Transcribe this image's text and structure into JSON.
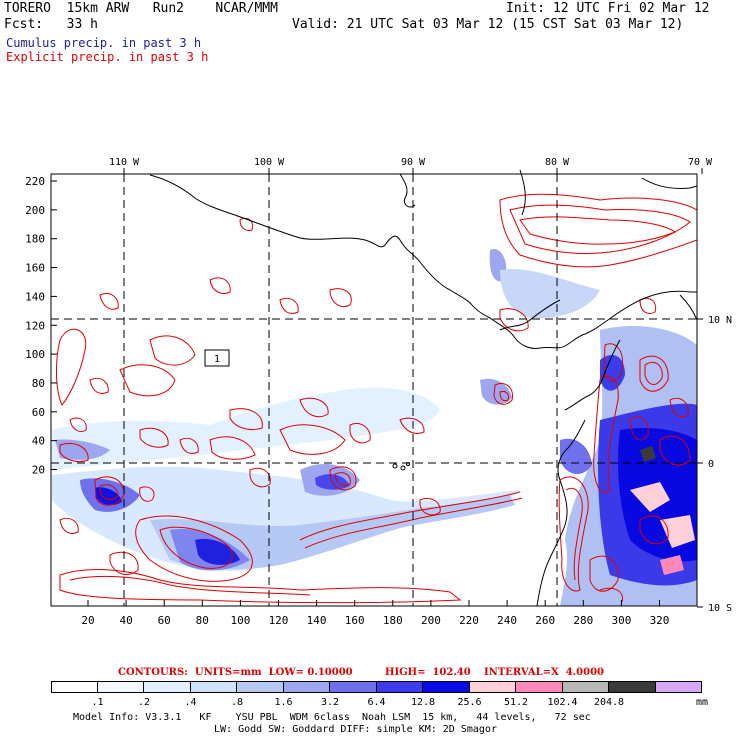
{
  "header": {
    "model_title": "TORERO  15km ARW   Run2    NCAR/MMM",
    "init": "Init: 12 UTC Fri 02 Mar 12",
    "fcst": "Fcst:   33 h",
    "valid": "Valid: 21 UTC Sat 03 Mar 12 (15 CST Sat 03 Mar 12)",
    "legend_cumulus": "Cumulus precip. in past 3 h",
    "legend_explicit": "Explicit precip. in past 3 h"
  },
  "map": {
    "top_longitudes": [
      "110 W",
      "100 W",
      "90 W",
      "80 W",
      "70 W"
    ],
    "right_latitudes": [
      "10 N",
      "0",
      "10 S"
    ],
    "y_ticks": [
      "220",
      "200",
      "180",
      "160",
      "140",
      "120",
      "100",
      "80",
      "60",
      "40",
      "20"
    ],
    "x_ticks": [
      "20",
      "40",
      "60",
      "80",
      "100",
      "120",
      "140",
      "160",
      "180",
      "200",
      "220",
      "240",
      "260",
      "280",
      "300",
      "320"
    ],
    "contour_label": "1"
  },
  "contours_info": {
    "units": "CONTOURS:  UNITS=mm  LOW= 0.10000",
    "high": "HIGH=  102.40",
    "interval": "INTERVAL=X  4.0000"
  },
  "colorbar": {
    "labels": [
      ".1",
      ".2",
      ".4",
      ".8",
      "1.6",
      "3.2",
      "6.4",
      "12.8",
      "25.6",
      "51.2",
      "102.4",
      "204.8"
    ],
    "unit": "mm",
    "colors": [
      "#ffffff",
      "#f4f8ff",
      "#e2efff",
      "#cfe3ff",
      "#b8c8f4",
      "#9ea6f0",
      "#6f70ec",
      "#3c3cea",
      "#0b0be6",
      "#ffd0da",
      "#ff88b8",
      "#b8b8b8",
      "#3a3a3a",
      "#d8a8f8"
    ]
  },
  "footer": {
    "line1": "Model Info: V3.3.1   KF    YSU PBL  WDM 6class  Noah LSM  15 km,   44 levels,   72 sec",
    "line2": "LW: Godd SW: Goddard DIFF: simple KM: 2D Smagor"
  }
}
